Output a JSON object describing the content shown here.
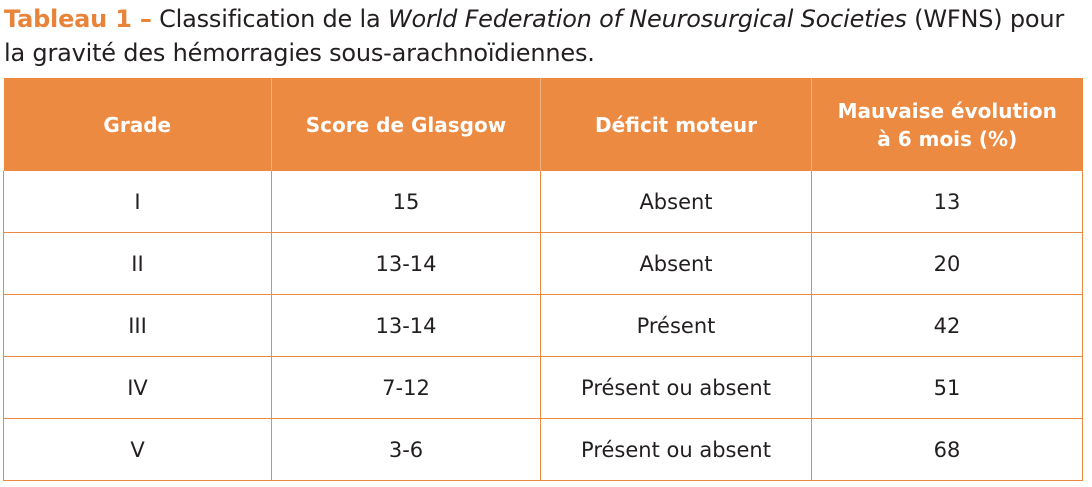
{
  "caption": {
    "label": "Tableau 1 –",
    "text_before": " Classification de la ",
    "text_italic": "World Federation of Neurosurgical Societies",
    "text_after": " (WFNS) pour la gravité des hémorragies sous-arachnoïdiennes."
  },
  "table": {
    "headers": [
      "Grade",
      "Score de Glasgow",
      "Déficit moteur",
      "Mauvaise évolution à 6 mois (%)"
    ],
    "rows": [
      [
        "I",
        "15",
        "Absent",
        "13"
      ],
      [
        "II",
        "13-14",
        "Absent",
        "20"
      ],
      [
        "III",
        "13-14",
        "Présent",
        "42"
      ],
      [
        "IV",
        "7-12",
        "Présent ou absent",
        "51"
      ],
      [
        "V",
        "3-6",
        "Présent ou absent",
        "68"
      ]
    ]
  },
  "colors": {
    "accent": "#ed8a42",
    "caption_label": "#e8833a"
  }
}
